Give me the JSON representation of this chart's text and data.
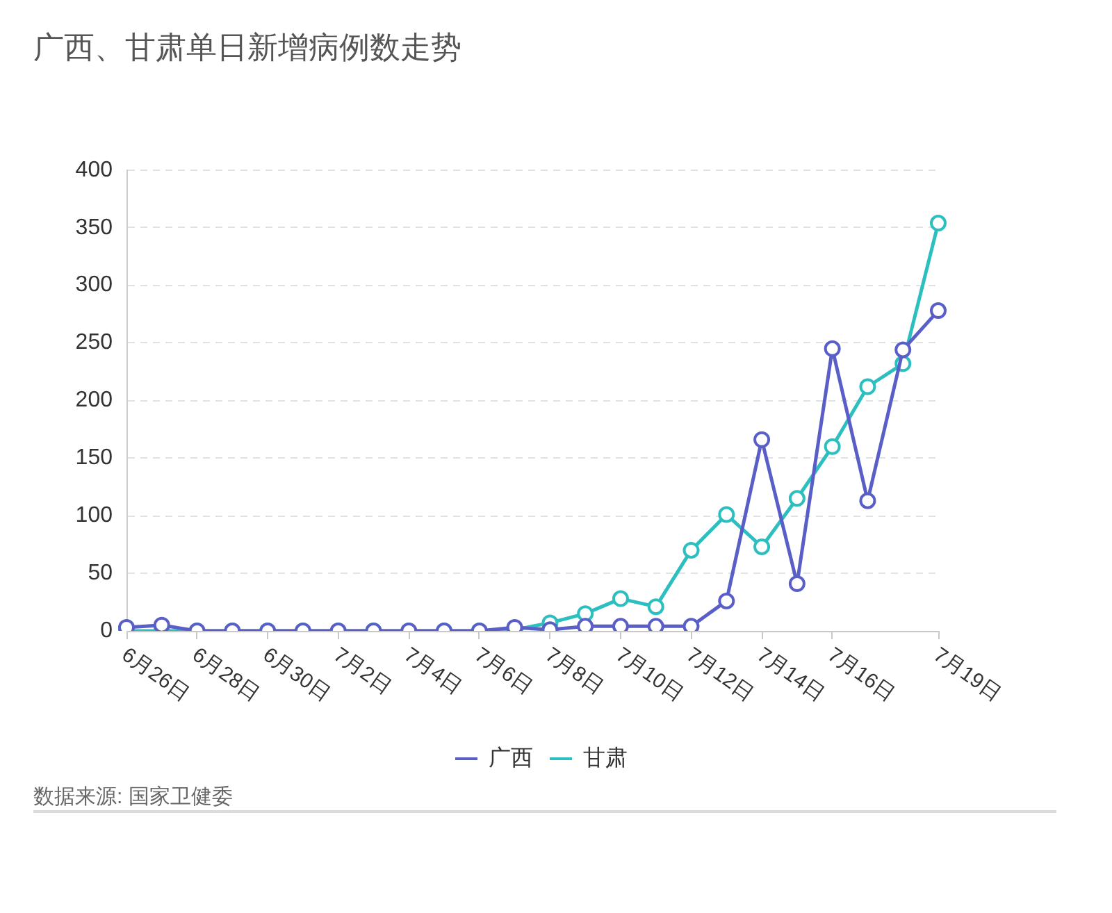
{
  "chart_data": {
    "type": "line",
    "title": "广西、甘肃单日新增病例数走势",
    "categories": [
      "6月26日",
      null,
      "6月28日",
      null,
      "6月30日",
      null,
      "7月2日",
      null,
      "7月4日",
      null,
      "7月6日",
      null,
      "7月8日",
      null,
      "7月10日",
      null,
      "7月12日",
      null,
      "7月14日",
      null,
      "7月16日",
      null,
      null,
      "7月19日"
    ],
    "series": [
      {
        "name": "广西",
        "color": "#5a5fc8",
        "values": [
          3,
          5,
          0,
          0,
          0,
          0,
          0,
          0,
          0,
          0,
          0,
          3,
          1,
          4,
          4,
          4,
          4,
          26,
          166,
          41,
          245,
          113,
          244,
          278
        ]
      },
      {
        "name": "甘肃",
        "color": "#2dbfc0",
        "values": [
          0,
          0,
          0,
          0,
          0,
          0,
          0,
          0,
          0,
          0,
          0,
          1,
          7,
          15,
          28,
          21,
          70,
          101,
          73,
          115,
          160,
          212,
          232,
          354
        ]
      }
    ],
    "ylim": [
      0,
      400
    ],
    "yticks": [
      0,
      50,
      100,
      150,
      200,
      250,
      300,
      350,
      400
    ],
    "grid": "y",
    "legend": "bottom",
    "marker": "circle",
    "annotations": [
      "数据来源: 国家卫健委"
    ]
  }
}
